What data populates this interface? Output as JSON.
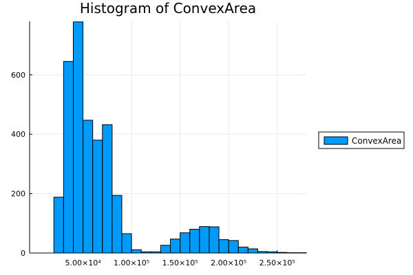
{
  "chart_data": {
    "type": "bar",
    "title": "Histogram of ConvexArea",
    "xlabel": "",
    "ylabel": "",
    "bin_width": 10000,
    "bins_start": [
      20000,
      30000,
      40000,
      50000,
      60000,
      70000,
      80000,
      90000,
      100000,
      110000,
      120000,
      130000,
      140000,
      150000,
      160000,
      170000,
      180000,
      190000,
      200000,
      210000,
      220000,
      230000,
      240000,
      250000,
      260000,
      270000
    ],
    "series": [
      {
        "name": "ConvexArea",
        "values": [
          188,
          645,
          778,
          447,
          380,
          432,
          194,
          65,
          11,
          4,
          4,
          26,
          47,
          68,
          80,
          89,
          88,
          45,
          42,
          20,
          14,
          5,
          4,
          2,
          1,
          1
        ]
      }
    ],
    "xlim": [
      -5000,
      280000
    ],
    "ylim": [
      0,
      780
    ],
    "x_ticks": [
      {
        "value": 50000,
        "label": "5.00×10⁴"
      },
      {
        "value": 100000,
        "label": "1.00×10⁵"
      },
      {
        "value": 150000,
        "label": "1.50×10⁵"
      },
      {
        "value": 200000,
        "label": "2.00×10⁵"
      },
      {
        "value": 250000,
        "label": "2.50×10⁵"
      }
    ],
    "y_ticks": [
      {
        "value": 0,
        "label": "0"
      },
      {
        "value": 200,
        "label": "200"
      },
      {
        "value": 400,
        "label": "400"
      },
      {
        "value": 600,
        "label": "600"
      }
    ],
    "grid": true,
    "legend_position": "right",
    "colors": {
      "bar_fill": "#009AFA",
      "bar_stroke": "#000000",
      "grid": "#E9E9E9",
      "axis": "#000000"
    }
  }
}
